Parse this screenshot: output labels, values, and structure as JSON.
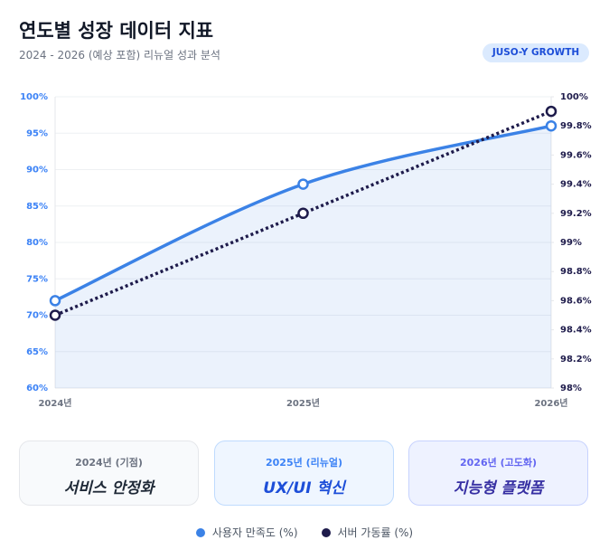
{
  "header": {
    "title": "연도별 성장 데이터 지표",
    "subtitle": "2024 - 2026 (예상 포함) 리뉴얼 성과 분석",
    "badge": "JUSO-Y GROWTH"
  },
  "chart_data": {
    "type": "line",
    "categories": [
      "2024년",
      "2025년",
      "2026년"
    ],
    "series": [
      {
        "name": "사용자 만족도 (%)",
        "color": "#3b82e6",
        "values": [
          72,
          88,
          96
        ],
        "area": true,
        "smooth": true
      },
      {
        "name": "서버 가동률 (%)",
        "color": "#1e1b4b",
        "values": [
          98.5,
          99.2,
          99.9
        ],
        "axis": "y2",
        "dashed": true
      }
    ],
    "ylim": [
      60,
      100
    ],
    "yticks": [
      {
        "value": 60,
        "label": "60%"
      },
      {
        "value": 65,
        "label": "65%"
      },
      {
        "value": 70,
        "label": "70%"
      },
      {
        "value": 75,
        "label": "75%"
      },
      {
        "value": 80,
        "label": "80%"
      },
      {
        "value": 85,
        "label": "85%"
      },
      {
        "value": 90,
        "label": "90%"
      },
      {
        "value": 95,
        "label": "95%"
      },
      {
        "value": 100,
        "label": "100%"
      }
    ],
    "y2lim": [
      98,
      100
    ],
    "y2ticks": [
      {
        "value": 98,
        "label": "98%"
      },
      {
        "value": 98.2,
        "label": "98.2%"
      },
      {
        "value": 98.4,
        "label": "98.4%"
      },
      {
        "value": 98.6,
        "label": "98.6%"
      },
      {
        "value": 98.8,
        "label": "98.8%"
      },
      {
        "value": 99,
        "label": "99%"
      },
      {
        "value": 99.2,
        "label": "99.2%"
      },
      {
        "value": 99.4,
        "label": "99.4%"
      },
      {
        "value": 99.6,
        "label": "99.6%"
      },
      {
        "value": 99.8,
        "label": "99.8%"
      },
      {
        "value": 100,
        "label": "100%"
      }
    ],
    "grid": true
  },
  "cards": [
    {
      "label": "2024년 (기점)",
      "title": "서비스 안정화"
    },
    {
      "label": "2025년 (리뉴얼)",
      "title": "UX/UI 혁신"
    },
    {
      "label": "2026년 (고도화)",
      "title": "지능형 플랫폼"
    }
  ]
}
